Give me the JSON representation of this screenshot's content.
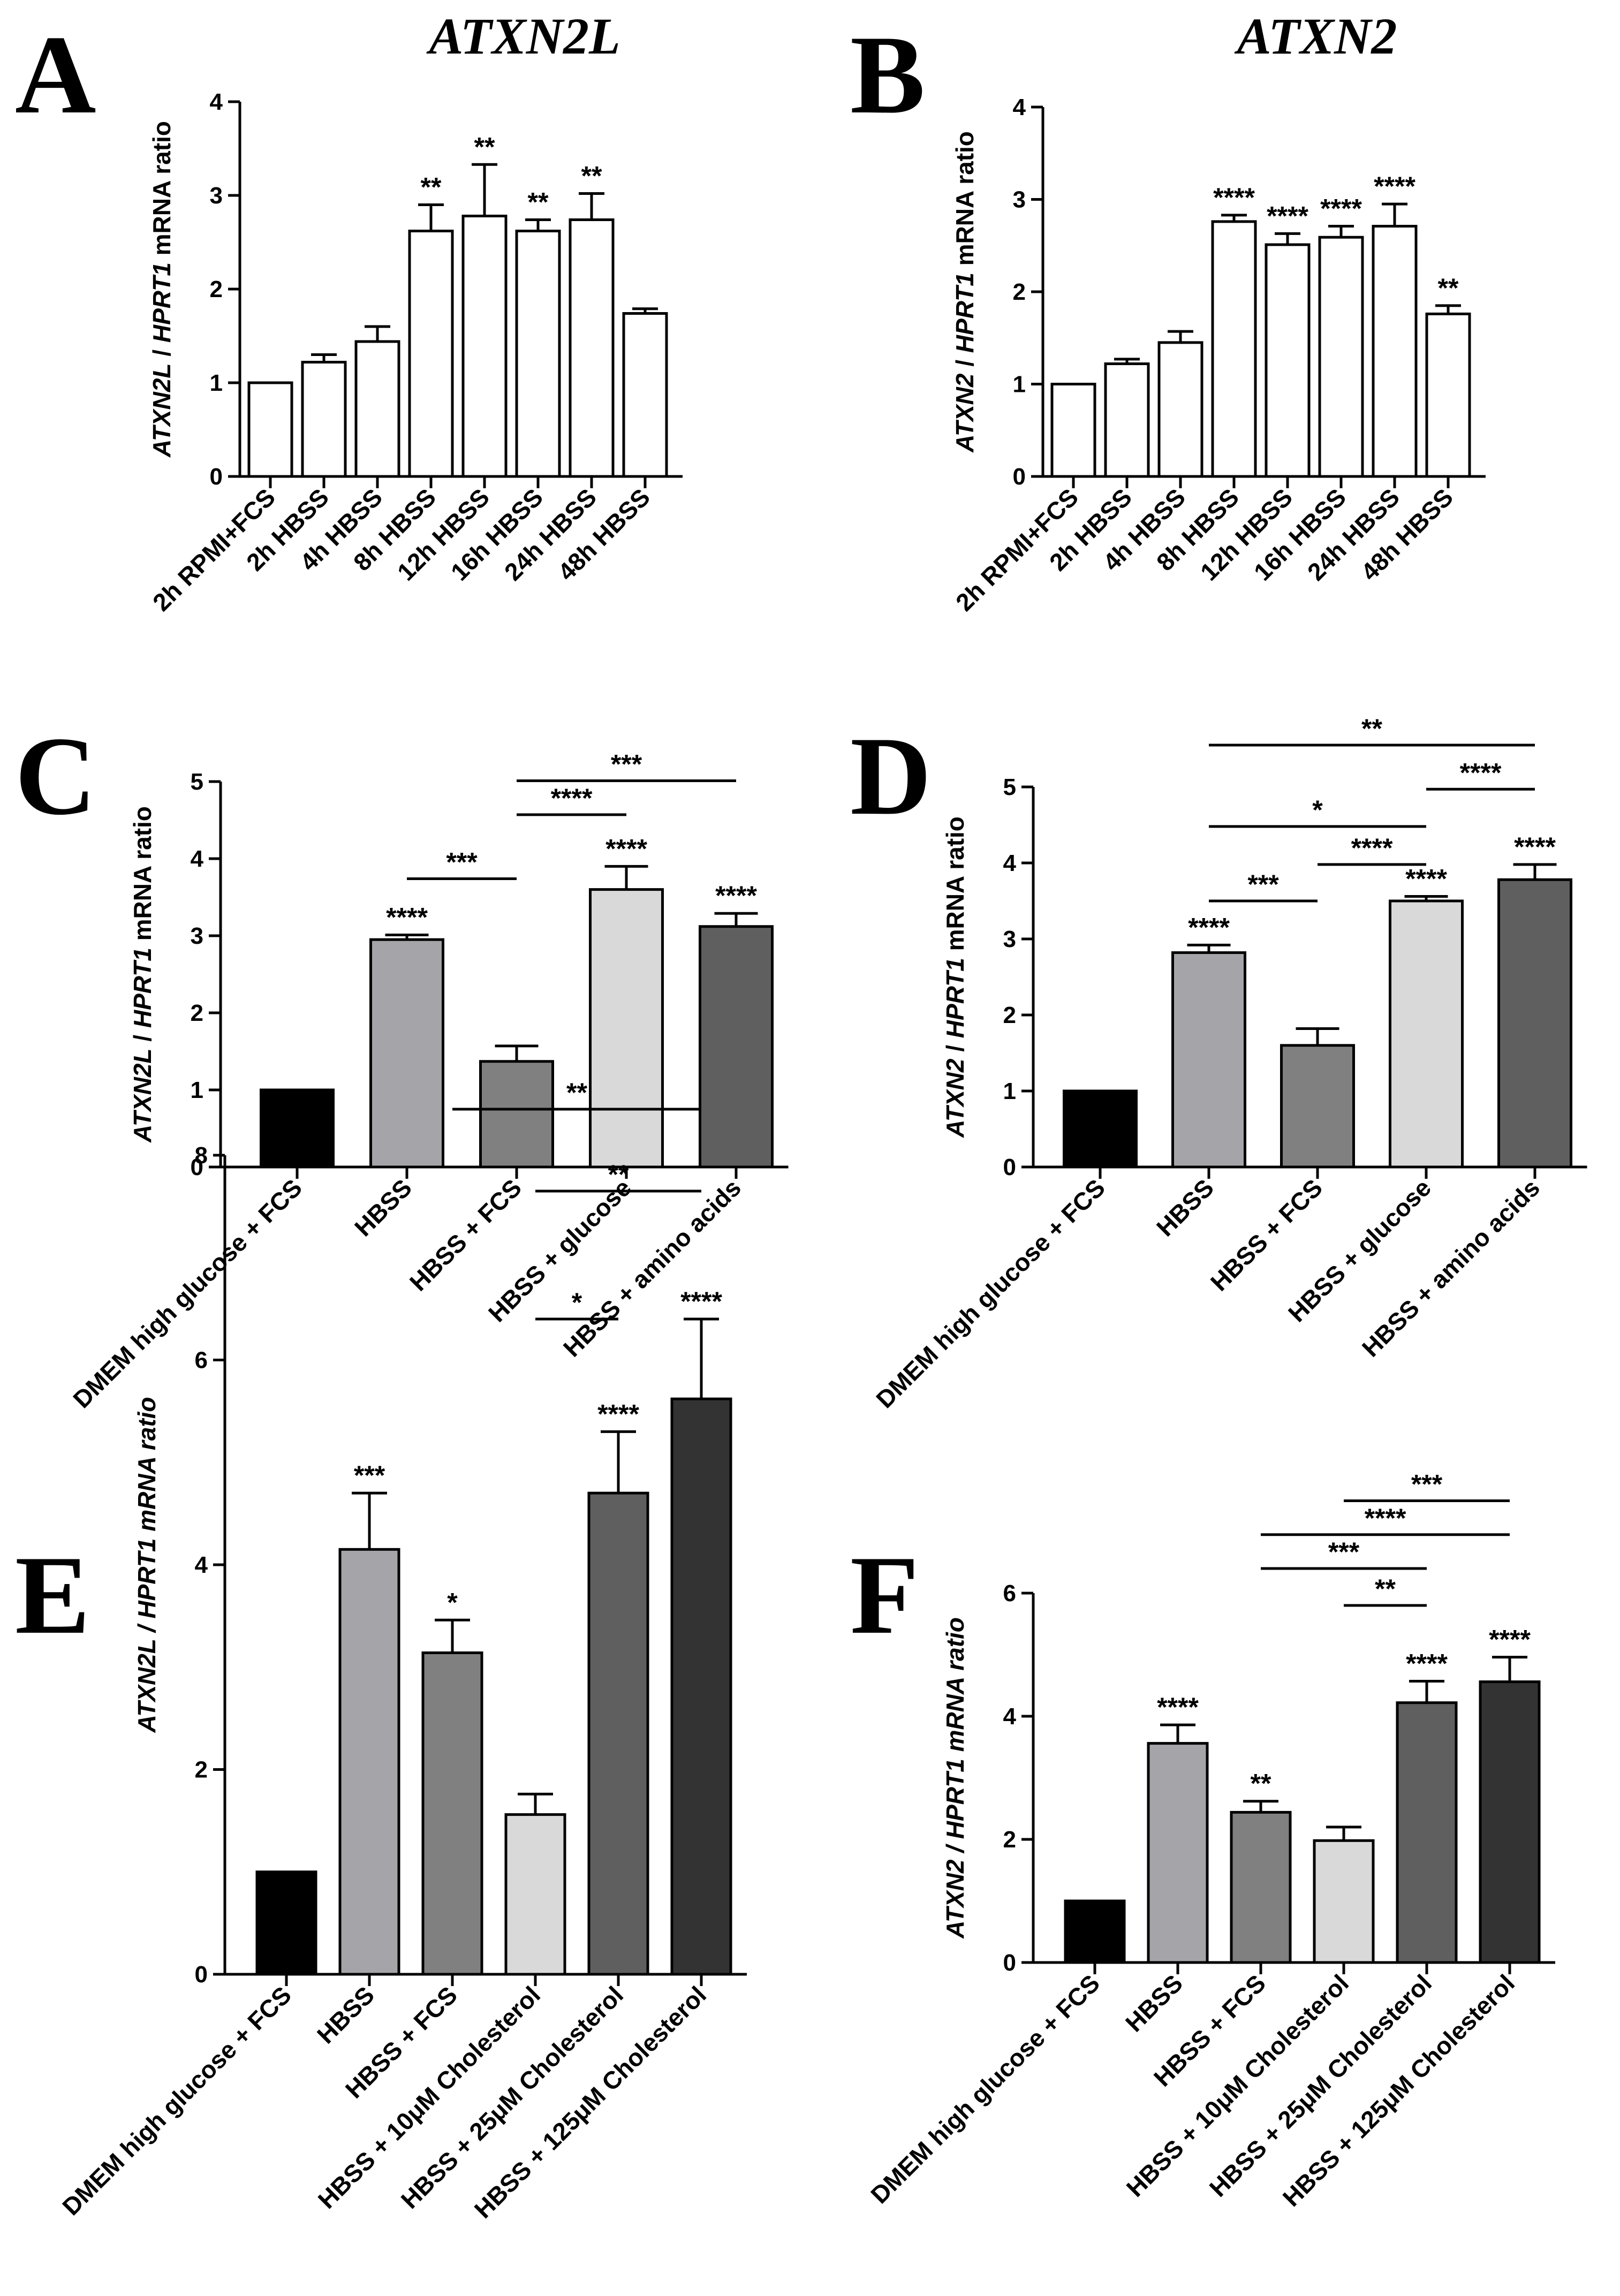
{
  "figure": {
    "titles": [
      "ATXN2L",
      "ATXN2"
    ],
    "bar_colors": {
      "white": "#ffffff",
      "black": "#000000",
      "gray_mid": "#a5a5a9",
      "gray_dark": "#808080",
      "gray_light": "#d9d9d9",
      "gray_darker": "#5f5f5f",
      "gray_darkest": "#333333"
    }
  },
  "chart_data": [
    {
      "type": "bar",
      "panel": "A",
      "title": "ATXN2L",
      "ylabel_gene": "ATXN2L",
      "ylabel_ref": "HPRT1",
      "ylabel_suffix": "mRNA ratio",
      "ylim": [
        0,
        4
      ],
      "yticks": [
        0,
        1,
        2,
        3,
        4
      ],
      "categories": [
        "2h RPMI+FCS",
        "2h HBSS",
        "4h HBSS",
        "8h HBSS",
        "12h HBSS",
        "16h HBSS",
        "24h HBSS",
        "48h HBSS"
      ],
      "values": [
        1.0,
        1.22,
        1.44,
        2.62,
        2.78,
        2.62,
        2.74,
        1.74
      ],
      "errors": [
        0.0,
        0.08,
        0.16,
        0.28,
        0.55,
        0.12,
        0.28,
        0.05
      ],
      "significance": [
        "",
        "",
        "",
        "**",
        "**",
        "**",
        "**",
        ""
      ],
      "comparisons": [],
      "colors": [
        "white",
        "white",
        "white",
        "white",
        "white",
        "white",
        "white",
        "white"
      ]
    },
    {
      "type": "bar",
      "panel": "B",
      "title": "ATXN2",
      "ylabel_gene": "ATXN2",
      "ylabel_ref": "HPRT1",
      "ylabel_suffix": "mRNA ratio",
      "ylim": [
        0,
        4
      ],
      "yticks": [
        0,
        1,
        2,
        3,
        4
      ],
      "categories": [
        "2h RPMI+FCS",
        "2h HBSS",
        "4h HBSS",
        "8h HBSS",
        "12h HBSS",
        "16h HBSS",
        "24h HBSS",
        "48h HBSS"
      ],
      "values": [
        1.0,
        1.22,
        1.45,
        2.76,
        2.51,
        2.59,
        2.71,
        1.76
      ],
      "errors": [
        0.0,
        0.05,
        0.12,
        0.07,
        0.12,
        0.12,
        0.24,
        0.09
      ],
      "significance": [
        "",
        "",
        "",
        "****",
        "****",
        "****",
        "****",
        "**"
      ],
      "comparisons": [],
      "colors": [
        "white",
        "white",
        "white",
        "white",
        "white",
        "white",
        "white",
        "white"
      ]
    },
    {
      "type": "bar",
      "panel": "C",
      "ylabel_gene": "ATXN2L",
      "ylabel_ref": "HPRT1",
      "ylabel_suffix": "mRNA ratio",
      "ylim": [
        0,
        5
      ],
      "yticks": [
        0,
        1,
        2,
        3,
        4,
        5
      ],
      "categories": [
        "DMEM  high glucose + FCS",
        "HBSS",
        "HBSS + FCS",
        "HBSS + glucose",
        "HBSS + amino acids"
      ],
      "values": [
        1.0,
        2.95,
        1.37,
        3.6,
        3.12
      ],
      "errors": [
        0.0,
        0.06,
        0.2,
        0.3,
        0.17
      ],
      "significance": [
        "",
        "****",
        "",
        "****",
        "****"
      ],
      "comparisons": [
        {
          "from": 1,
          "to": 2,
          "level": 3.74,
          "label": "***"
        },
        {
          "from": 2,
          "to": 3,
          "level": 4.57,
          "label": "****"
        },
        {
          "from": 2,
          "to": 4,
          "level": 5.01,
          "label": "***"
        }
      ],
      "colors": [
        "black",
        "gray_mid",
        "gray_dark",
        "gray_light",
        "gray_darker"
      ]
    },
    {
      "type": "bar",
      "panel": "D",
      "ylabel_gene": "ATXN2",
      "ylabel_ref": "HPRT1",
      "ylabel_suffix": "mRNA ratio",
      "ylim": [
        0,
        5
      ],
      "yticks": [
        0,
        1,
        2,
        3,
        4,
        5
      ],
      "categories": [
        "DMEM  high glucose + FCS",
        "HBSS",
        "HBSS + FCS",
        "HBSS + glucose",
        "HBSS + amino acids"
      ],
      "values": [
        1.0,
        2.82,
        1.6,
        3.5,
        3.78
      ],
      "errors": [
        0.0,
        0.1,
        0.22,
        0.06,
        0.2
      ],
      "significance": [
        "",
        "****",
        "",
        "****",
        "****"
      ],
      "comparisons": [
        {
          "from": 1,
          "to": 2,
          "level": 3.5,
          "label": "***"
        },
        {
          "from": 2,
          "to": 3,
          "level": 3.98,
          "label": "****"
        },
        {
          "from": 1,
          "to": 3,
          "level": 4.48,
          "label": "*"
        },
        {
          "from": 3,
          "to": 4,
          "level": 4.97,
          "label": "****"
        },
        {
          "from": 1,
          "to": 4,
          "level": 5.55,
          "label": "**"
        }
      ],
      "colors": [
        "black",
        "gray_mid",
        "gray_dark",
        "gray_light",
        "gray_darker"
      ]
    },
    {
      "type": "bar",
      "panel": "E",
      "ylabel_gene": "ATXN2L",
      "ylabel_ref": "HPRT1",
      "ylabel_suffix": "mRNA ratio",
      "ylabel_italic_all": true,
      "ylim": [
        0,
        8
      ],
      "yticks": [
        0,
        2,
        4,
        6,
        8
      ],
      "categories": [
        "DMEM high glucose + FCS",
        "HBSS",
        "HBSS + FCS",
        "HBSS + 10μM Cholesterol",
        "HBSS + 25μM Cholesterol",
        "HBSS + 125μM Cholesterol"
      ],
      "values": [
        1.0,
        4.15,
        3.14,
        1.56,
        4.7,
        5.62
      ],
      "errors": [
        0.0,
        0.55,
        0.32,
        0.2,
        0.6,
        0.78
      ],
      "significance": [
        "",
        "***",
        "*",
        "",
        "****",
        "****"
      ],
      "comparisons": [
        {
          "from": 3,
          "to": 4,
          "level": 6.4,
          "label": "*"
        },
        {
          "from": 3,
          "to": 5,
          "level": 7.65,
          "label": "**"
        },
        {
          "from": 2,
          "to": 5,
          "level": 8.45,
          "label": "**"
        }
      ],
      "colors": [
        "black",
        "gray_mid",
        "gray_dark",
        "gray_light",
        "gray_darker",
        "gray_darkest"
      ]
    },
    {
      "type": "bar",
      "panel": "F",
      "ylabel_gene": "ATXN2",
      "ylabel_ref": "HPRT1",
      "ylabel_suffix": "mRNA ratio",
      "ylabel_italic_all": true,
      "ylim": [
        0,
        6
      ],
      "yticks": [
        0,
        2,
        4,
        6
      ],
      "categories": [
        "DMEM high glucose + FCS",
        "HBSS",
        "HBSS + FCS",
        "HBSS + 10μM Cholesterol",
        "HBSS + 25μM Cholesterol",
        "HBSS + 125μM Cholesterol"
      ],
      "values": [
        1.0,
        3.56,
        2.44,
        1.98,
        4.22,
        4.56
      ],
      "errors": [
        0.0,
        0.3,
        0.18,
        0.22,
        0.35,
        0.4
      ],
      "significance": [
        "",
        "****",
        "**",
        "",
        "****",
        "****"
      ],
      "comparisons": [
        {
          "from": 3,
          "to": 4,
          "level": 5.8,
          "label": "**"
        },
        {
          "from": 2,
          "to": 4,
          "level": 6.4,
          "label": "***"
        },
        {
          "from": 2,
          "to": 5,
          "level": 6.95,
          "label": "****"
        },
        {
          "from": 3,
          "to": 5,
          "level": 7.5,
          "label": "***"
        }
      ],
      "colors": [
        "black",
        "gray_mid",
        "gray_dark",
        "gray_light",
        "gray_darker",
        "gray_darkest"
      ]
    }
  ]
}
